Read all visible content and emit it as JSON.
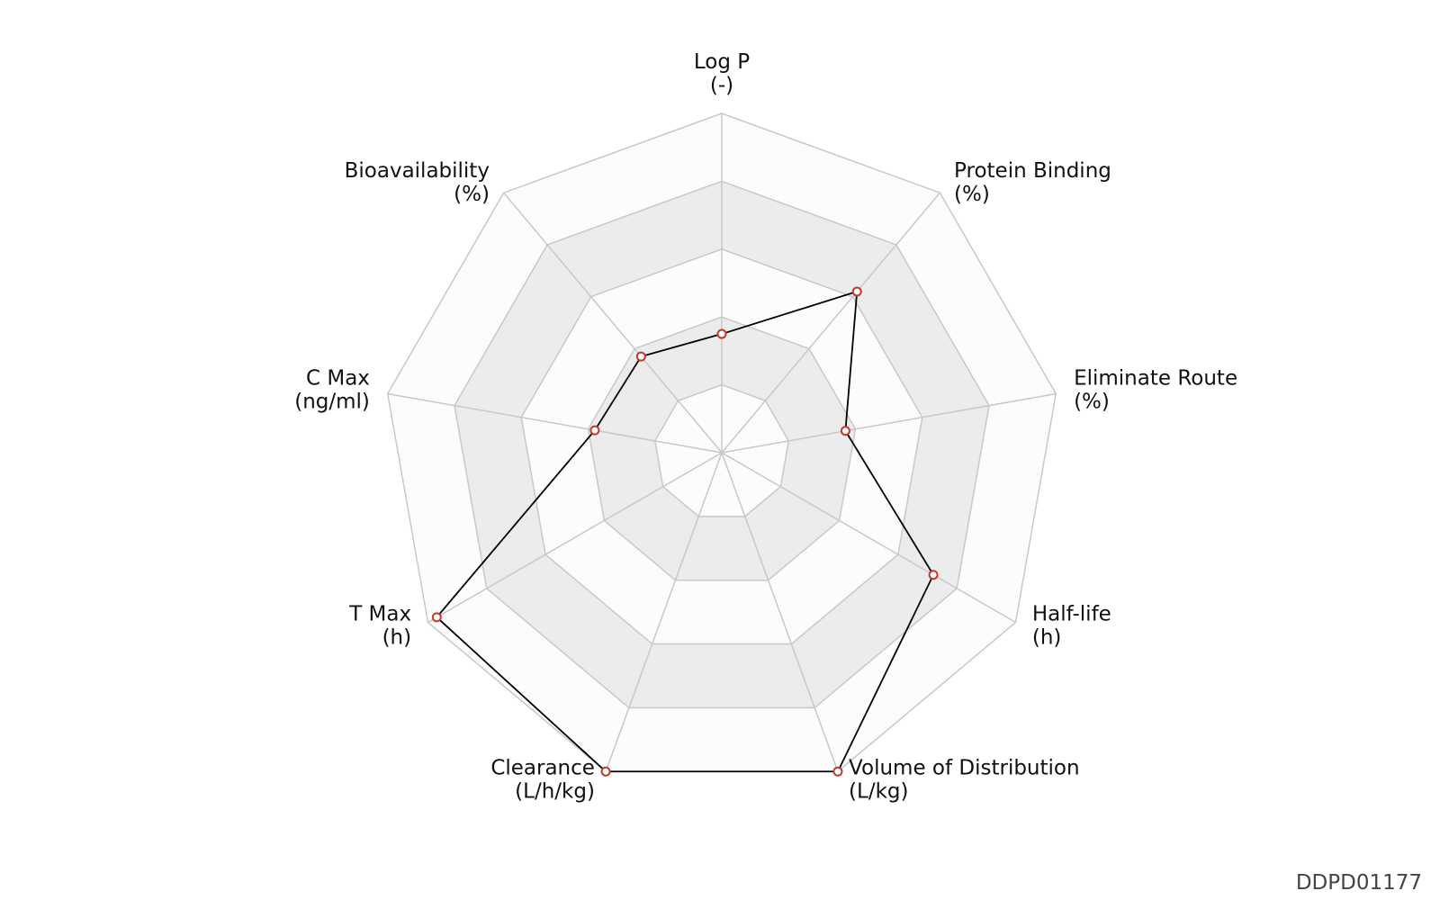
{
  "chart_data": {
    "type": "radar",
    "levels": 5,
    "range": [
      0,
      1
    ],
    "axes": [
      {
        "name": "Log P",
        "unit": "(-)",
        "value": 0.35
      },
      {
        "name": "Protein Binding",
        "unit": "(%)",
        "value": 0.62
      },
      {
        "name": "Eliminate Route",
        "unit": "(%)",
        "value": 0.37
      },
      {
        "name": "Half-life",
        "unit": "(h)",
        "value": 0.72
      },
      {
        "name": "Volume of Distribution",
        "unit": "(L/kg)",
        "value": 1.0
      },
      {
        "name": "Clearance",
        "unit": "(L/h/kg)",
        "value": 1.0
      },
      {
        "name": "T Max",
        "unit": "(h)",
        "value": 0.97
      },
      {
        "name": "C Max",
        "unit": "(ng/ml)",
        "value": 0.38
      },
      {
        "name": "Bioavailability",
        "unit": "(%)",
        "value": 0.37
      }
    ],
    "colors": {
      "band_light": "#fcfcfc",
      "band_dark": "#ececec",
      "grid": "#c8c8c8",
      "line": "#000000",
      "marker": "#c0392b"
    }
  },
  "watermark": "DDPD01177"
}
